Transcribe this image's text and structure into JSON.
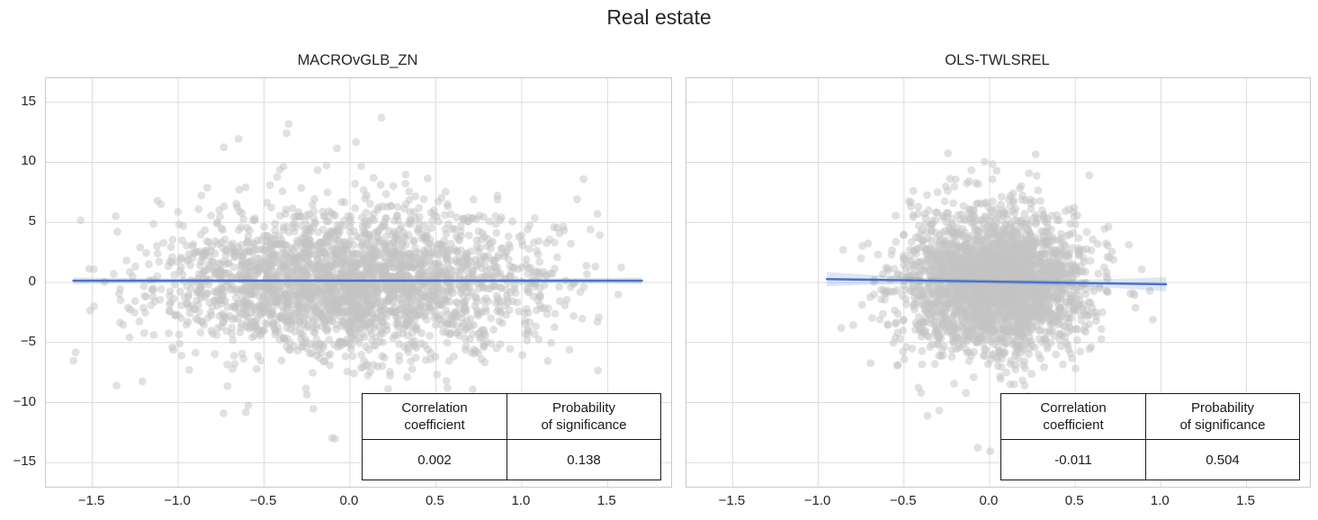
{
  "page": {
    "title": "Real estate"
  },
  "style": {
    "background": "#ffffff",
    "text_color": "#262626",
    "grid_color": "#dcdcdc",
    "spine_color": "#c9c9c9",
    "point_color": "#c4c4c4",
    "point_opacity": 0.5,
    "line_color": "#4a72c8",
    "band_opacity": 0.18,
    "table_border_color": "#1a1a1a"
  },
  "axes": {
    "xlim": [
      -1.77,
      1.87
    ],
    "ylim": [
      -17,
      17
    ],
    "xticks": [
      -1.5,
      -1.0,
      -0.5,
      0.0,
      0.5,
      1.0,
      1.5
    ],
    "xtick_labels": [
      "−1.5",
      "−1.0",
      "−0.5",
      "0.0",
      "0.5",
      "1.0",
      "1.5"
    ],
    "yticks": [
      15,
      10,
      5,
      0,
      -5,
      -10,
      -15
    ],
    "ytick_labels": [
      "15",
      "10",
      "5",
      "0",
      "−5",
      "−10",
      "−15"
    ],
    "grid": true
  },
  "chart_data": [
    {
      "type": "scatter",
      "title": "MACROvGLB_ZN",
      "xlabel": "",
      "ylabel": "",
      "grid": true,
      "legend": false,
      "xlim": [
        -1.77,
        1.87
      ],
      "ylim": [
        -17,
        17
      ],
      "n_points": 2700,
      "seed": 42,
      "x_dist": {
        "mean": 0.0,
        "std": 0.55,
        "min": -1.62,
        "max": 1.72
      },
      "y_dist": {
        "mean": 0.0,
        "std": 2.85,
        "outlier_frac": 0.055,
        "outlier_scale": 2.1,
        "min": -15.7,
        "max": 15.5
      },
      "regression": {
        "x_start": -1.61,
        "x_end": 1.7,
        "y_start": 0.15,
        "y_end": 0.15,
        "band_halfwidth_mid": 0.12,
        "band_halfwidth_end": 0.28
      },
      "table": {
        "col1_header": [
          "Correlation",
          "coefficient"
        ],
        "col2_header": [
          "Probability",
          "of significance"
        ],
        "col1_value": "0.002",
        "col2_value": "0.138"
      }
    },
    {
      "type": "scatter",
      "title": "OLS-TWLSREL",
      "xlabel": "",
      "ylabel": "",
      "grid": true,
      "legend": false,
      "xlim": [
        -1.77,
        1.87
      ],
      "ylim": [
        -17,
        17
      ],
      "n_points": 2700,
      "seed": 1337,
      "x_dist": {
        "mean": 0.03,
        "std": 0.27,
        "min": -0.95,
        "max": 1.06
      },
      "y_dist": {
        "mean": 0.0,
        "std": 2.85,
        "outlier_frac": 0.05,
        "outlier_scale": 2.0,
        "min": -14.3,
        "max": 13.5
      },
      "regression": {
        "x_start": -0.95,
        "x_end": 1.03,
        "y_start": 0.28,
        "y_end": -0.15,
        "band_halfwidth_mid": 0.18,
        "band_halfwidth_end": 0.6
      },
      "table": {
        "col1_header": [
          "Correlation",
          "coefficient"
        ],
        "col2_header": [
          "Probability",
          "of significance"
        ],
        "col1_value": "-0.011",
        "col2_value": "0.504"
      }
    }
  ]
}
